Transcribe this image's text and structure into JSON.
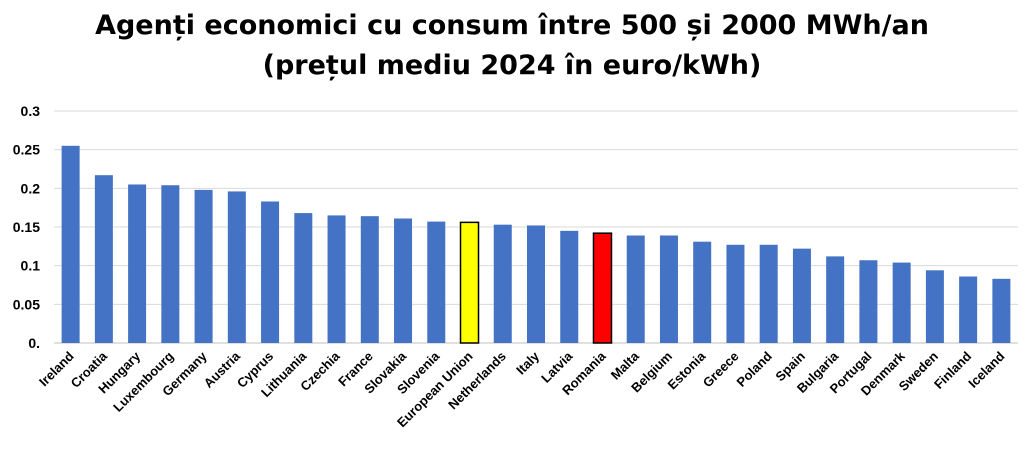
{
  "chart_data": {
    "type": "bar",
    "title_line1": "Agenți economici cu consum între 500 și 2000 MWh/an",
    "title_line2": "(prețul mediu 2024 în euro/kWh)",
    "xlabel": "",
    "ylabel": "",
    "ylim": [
      0,
      0.3
    ],
    "yticks": [
      {
        "value": 0,
        "label": "0."
      },
      {
        "value": 0.05,
        "label": "0.05"
      },
      {
        "value": 0.1,
        "label": "0.1"
      },
      {
        "value": 0.15,
        "label": "0.15"
      },
      {
        "value": 0.2,
        "label": "0.2"
      },
      {
        "value": 0.25,
        "label": "0.25"
      },
      {
        "value": 0.3,
        "label": "0.3"
      }
    ],
    "grid": true,
    "legend": "none",
    "categories": [
      "Ireland",
      "Croatia",
      "Hungary",
      "Luxembourg",
      "Germany",
      "Austria",
      "Cyprus",
      "Lithuania",
      "Czechia",
      "France",
      "Slovakia",
      "Slovenia",
      "European Union",
      "Netherlands",
      "Italy",
      "Latvia",
      "Romania",
      "Malta",
      "Belgium",
      "Estonia",
      "Greece",
      "Poland",
      "Spain",
      "Bulgaria",
      "Portugal",
      "Denmark",
      "Sweden",
      "Finland",
      "Iceland"
    ],
    "values": [
      0.255,
      0.217,
      0.205,
      0.204,
      0.198,
      0.196,
      0.183,
      0.168,
      0.165,
      0.164,
      0.161,
      0.157,
      0.156,
      0.153,
      0.152,
      0.145,
      0.142,
      0.139,
      0.139,
      0.131,
      0.127,
      0.127,
      0.122,
      0.112,
      0.107,
      0.104,
      0.094,
      0.086,
      0.083
    ],
    "colors": {
      "default": "#4472C4",
      "highlights": {
        "European Union": "#FFFF00",
        "Romania": "#FF0000"
      },
      "highlight_outline": "#000000",
      "grid": "#D9D9D9",
      "axis": "#BFBFBF"
    }
  }
}
